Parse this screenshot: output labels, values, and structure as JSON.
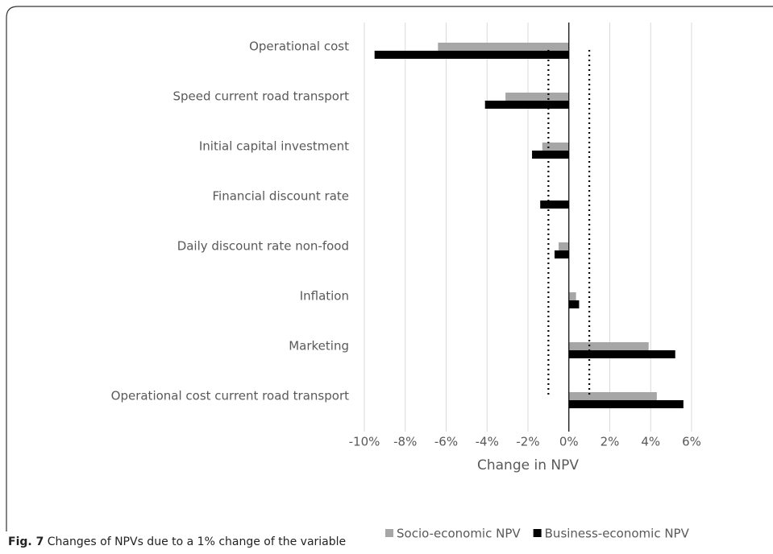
{
  "chart_data": {
    "type": "hbar",
    "categories": [
      "Operational cost",
      "Speed current road transport",
      "Initial capital investment",
      "Financial discount rate",
      "Daily discount rate non-food",
      "Inflation",
      "Marketing",
      "Operational cost current road transport"
    ],
    "series": [
      {
        "name": "Socio-economic NPV",
        "color": "#a6a6a6",
        "values": [
          -6.4,
          -3.1,
          -1.3,
          0,
          -0.5,
          0.35,
          3.9,
          4.3
        ]
      },
      {
        "name": "Business-economic NPV",
        "color": "#000000",
        "values": [
          -9.5,
          -4.1,
          -1.8,
          -1.4,
          -0.7,
          0.5,
          5.2,
          5.6
        ]
      }
    ],
    "xlabel": "Change in NPV",
    "xlim": [
      -10,
      6
    ],
    "xticks": [
      {
        "value": -10,
        "label": "-10%"
      },
      {
        "value": -8,
        "label": "-8%"
      },
      {
        "value": -6,
        "label": "-6%"
      },
      {
        "value": -4,
        "label": "-4%"
      },
      {
        "value": -2,
        "label": "-2%"
      },
      {
        "value": 0,
        "label": "0%"
      },
      {
        "value": 2,
        "label": "2%"
      },
      {
        "value": 4,
        "label": "4%"
      },
      {
        "value": 6,
        "label": "6%"
      }
    ],
    "reference_lines": [
      -1,
      1
    ],
    "grid": true,
    "legend": "bottom",
    "caption_label": "Fig. 7",
    "caption": "Changes of NPVs due to a 1% change of the variable"
  }
}
